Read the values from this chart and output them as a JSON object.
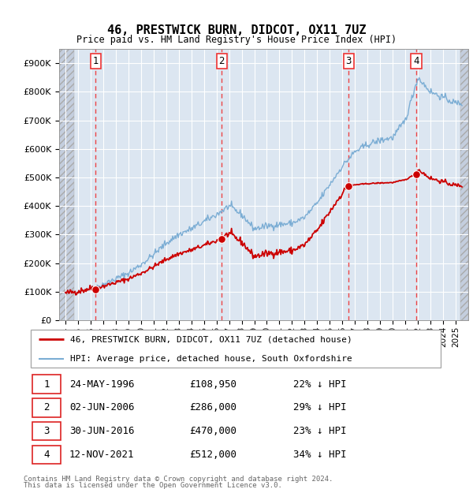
{
  "title": "46, PRESTWICK BURN, DIDCOT, OX11 7UZ",
  "subtitle": "Price paid vs. HM Land Registry's House Price Index (HPI)",
  "property_label": "46, PRESTWICK BURN, DIDCOT, OX11 7UZ (detached house)",
  "hpi_label": "HPI: Average price, detached house, South Oxfordshire",
  "footer1": "Contains HM Land Registry data © Crown copyright and database right 2024.",
  "footer2": "This data is licensed under the Open Government Licence v3.0.",
  "transactions": [
    {
      "num": 1,
      "price": 108950,
      "x": 1996.4
    },
    {
      "num": 2,
      "price": 286000,
      "x": 2006.42
    },
    {
      "num": 3,
      "price": 470000,
      "x": 2016.5
    },
    {
      "num": 4,
      "price": 512000,
      "x": 2021.87
    }
  ],
  "table_rows": [
    {
      "num": 1,
      "date": "24-MAY-1996",
      "price": "£108,950",
      "note": "22% ↓ HPI"
    },
    {
      "num": 2,
      "date": "02-JUN-2006",
      "price": "£286,000",
      "note": "29% ↓ HPI"
    },
    {
      "num": 3,
      "date": "30-JUN-2016",
      "price": "£470,000",
      "note": "23% ↓ HPI"
    },
    {
      "num": 4,
      "date": "12-NOV-2021",
      "price": "£512,000",
      "note": "34% ↓ HPI"
    }
  ],
  "hpi_anchors_x": [
    1994,
    1995,
    1996,
    1997,
    1998,
    1999,
    2000,
    2001,
    2002,
    2003,
    2004,
    2005,
    2006,
    2007,
    2008,
    2009,
    2010,
    2011,
    2012,
    2013,
    2014,
    2015,
    2016,
    2017,
    2018,
    2019,
    2020,
    2021,
    2022,
    2023,
    2024,
    2025
  ],
  "hpi_anchors_y": [
    95000,
    102000,
    112000,
    125000,
    145000,
    165000,
    195000,
    230000,
    270000,
    300000,
    320000,
    345000,
    370000,
    400000,
    370000,
    320000,
    330000,
    335000,
    340000,
    360000,
    410000,
    475000,
    540000,
    590000,
    615000,
    630000,
    640000,
    700000,
    850000,
    800000,
    780000,
    760000
  ],
  "ylim": [
    0,
    950000
  ],
  "ytick_vals": [
    0,
    100000,
    200000,
    300000,
    400000,
    500000,
    600000,
    700000,
    800000,
    900000
  ],
  "ytick_labels": [
    "£0",
    "£100K",
    "£200K",
    "£300K",
    "£400K",
    "£500K",
    "£600K",
    "£700K",
    "£800K",
    "£900K"
  ],
  "xlim_start": 1993.5,
  "xlim_end": 2026.0,
  "hatch_end": 1994.7,
  "hatch_start_right": 2025.4,
  "price_color": "#cc0000",
  "hpi_color": "#7badd4",
  "bg_color": "#dce6f1",
  "hatch_color": "#c4cede",
  "grid_color": "#ffffff",
  "dashed_line_color": "#ee3333",
  "legend_border_color": "#aaaaaa",
  "table_box_color": "#dd2222",
  "footer_color": "#666666"
}
